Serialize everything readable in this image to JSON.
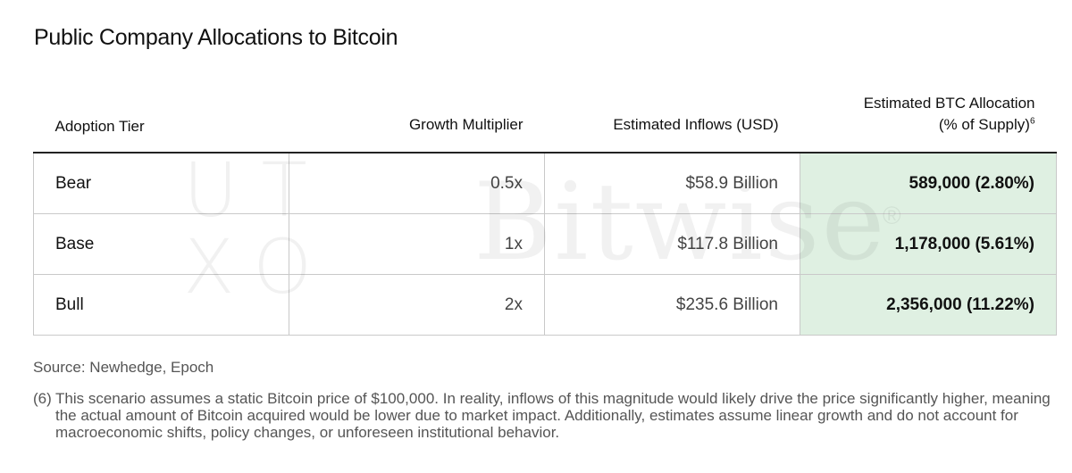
{
  "title": "Public Company Allocations to Bitcoin",
  "watermarks": {
    "utxo_top": "UT",
    "utxo_bottom": "XO",
    "bitwise": "Bitwise",
    "registered": "®"
  },
  "table": {
    "headers": {
      "tier": "Adoption Tier",
      "multiplier": "Growth Multiplier",
      "inflows": "Estimated Inflows (USD)",
      "allocation_line1": "Estimated BTC Allocation",
      "allocation_line2": "(% of Supply)",
      "allocation_footnote": "6"
    },
    "rows": [
      {
        "tier": "Bear",
        "multiplier": "0.5x",
        "inflows": "$58.9 Billion",
        "allocation": "589,000 (2.80%)"
      },
      {
        "tier": "Base",
        "multiplier": "1x",
        "inflows": "$117.8 Billion",
        "allocation": "1,178,000 (5.61%)"
      },
      {
        "tier": "Bull",
        "multiplier": "2x",
        "inflows": "$235.6 Billion",
        "allocation": "2,356,000 (11.22%)"
      }
    ],
    "highlight_color": "#dff0e2"
  },
  "source": "Source: Newhedge, Epoch",
  "footnote": {
    "number": "(6)",
    "text": "This scenario assumes a static Bitcoin price of $100,000. In reality, inflows of this magnitude would likely drive the price significantly higher, meaning the actual amount of Bitcoin acquired would be lower due to market impact. Additionally, estimates assume linear growth and do not account for macroeconomic shifts, policy changes, or unforeseen institutional behavior."
  }
}
